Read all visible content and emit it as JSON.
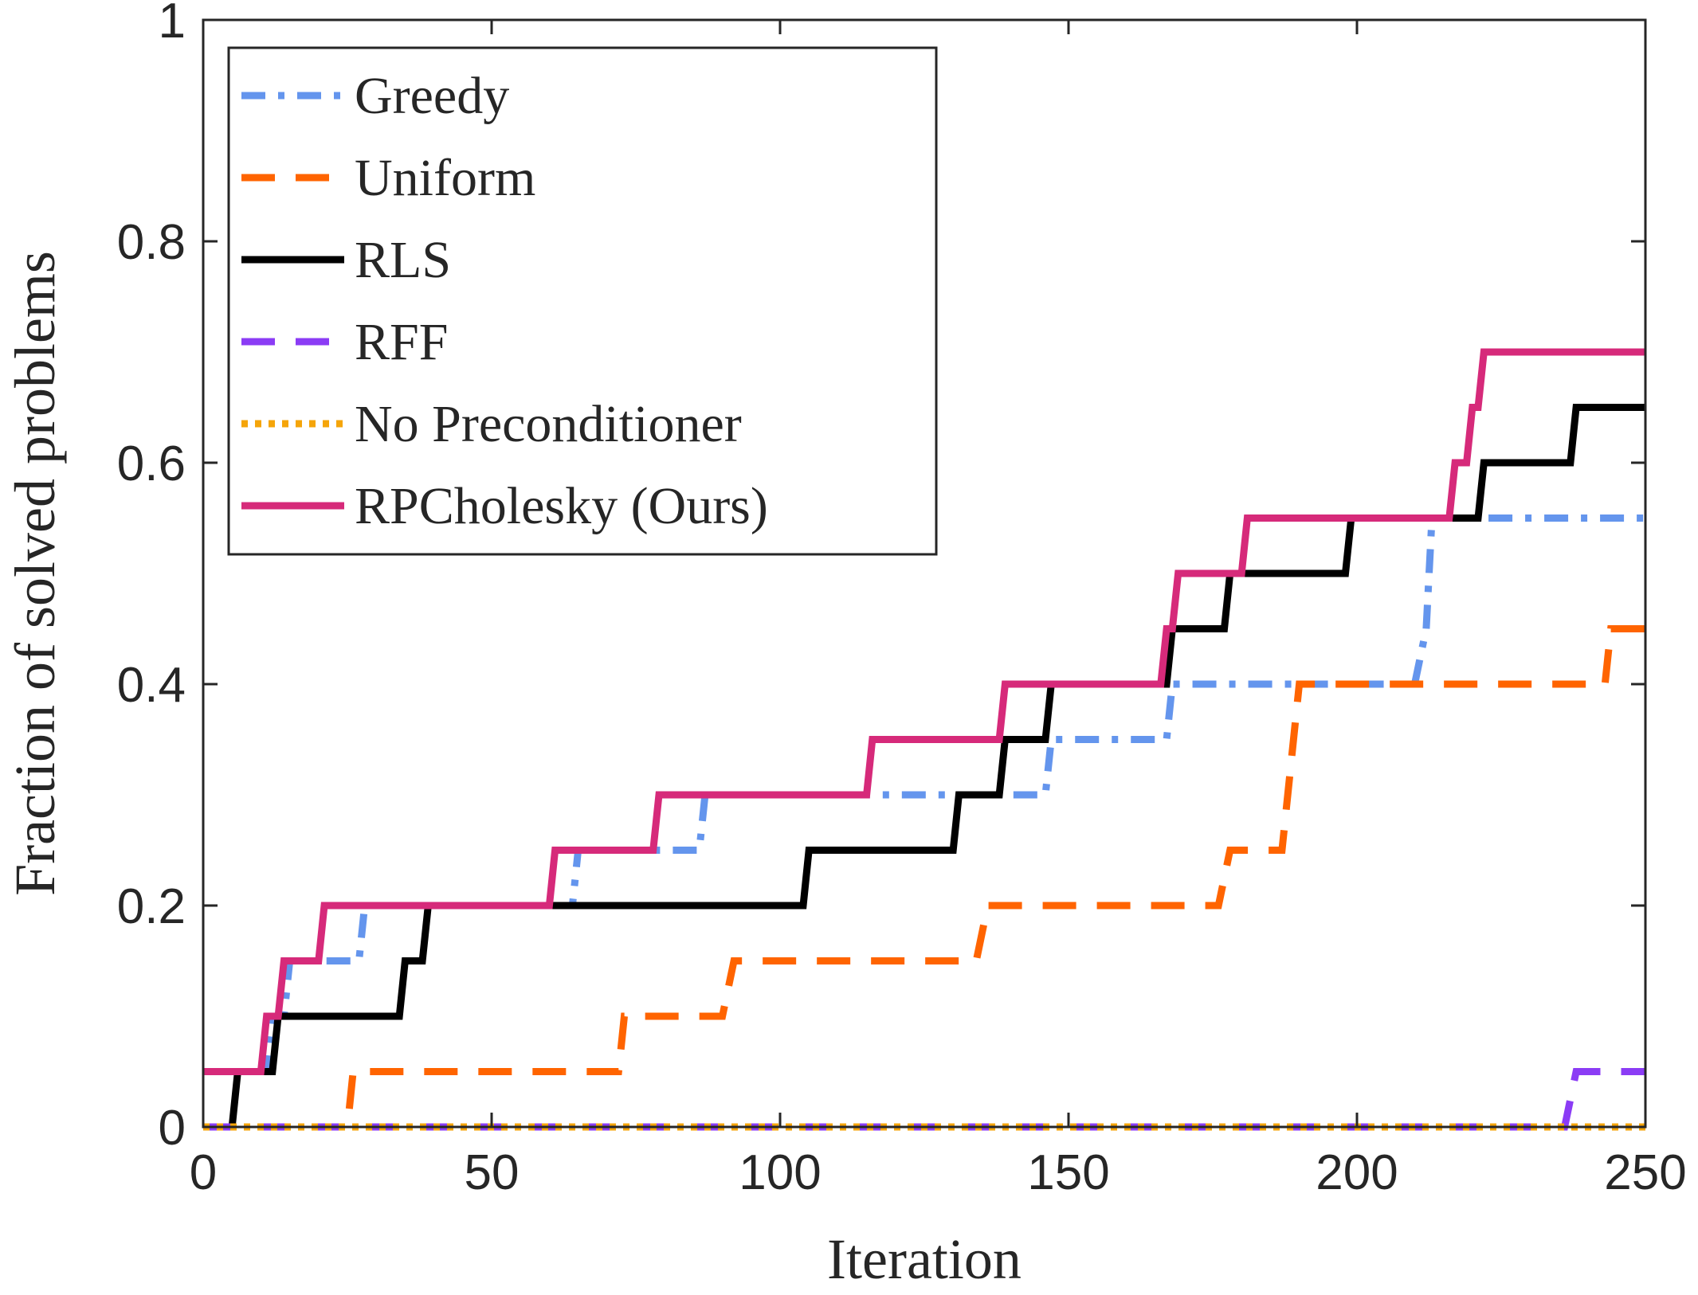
{
  "chart_data": {
    "type": "line",
    "title": "",
    "xlabel": "Iteration",
    "ylabel": "Fraction of solved problems",
    "xlim": [
      0,
      250
    ],
    "ylim": [
      0,
      1
    ],
    "xticks": [
      0,
      50,
      100,
      150,
      200,
      250
    ],
    "xtick_labels": [
      "0",
      "50",
      "100",
      "150",
      "200",
      "250"
    ],
    "yticks": [
      0,
      0.2,
      0.4,
      0.6,
      0.8,
      1
    ],
    "ytick_labels": [
      "0",
      "0.2",
      "0.4",
      "0.6",
      "0.8",
      "1"
    ],
    "grid": false,
    "legend_position": "top-left",
    "series": [
      {
        "name": "Greedy",
        "color": "#6495ED",
        "style": "dashdot",
        "points": [
          [
            0,
            0.05
          ],
          [
            11,
            0.05
          ],
          [
            12,
            0.1
          ],
          [
            14,
            0.1
          ],
          [
            15,
            0.15
          ],
          [
            27,
            0.15
          ],
          [
            28,
            0.2
          ],
          [
            64,
            0.2
          ],
          [
            65,
            0.25
          ],
          [
            86,
            0.25
          ],
          [
            87,
            0.3
          ],
          [
            146,
            0.3
          ],
          [
            147,
            0.35
          ],
          [
            167,
            0.35
          ],
          [
            168,
            0.4
          ],
          [
            210,
            0.4
          ],
          [
            212,
            0.45
          ],
          [
            213,
            0.55
          ],
          [
            250,
            0.55
          ]
        ]
      },
      {
        "name": "Uniform",
        "color": "#FF6400",
        "style": "dashed",
        "points": [
          [
            0,
            0
          ],
          [
            25,
            0
          ],
          [
            26,
            0.05
          ],
          [
            72,
            0.05
          ],
          [
            73,
            0.1
          ],
          [
            90,
            0.1
          ],
          [
            92,
            0.15
          ],
          [
            134,
            0.15
          ],
          [
            136,
            0.2
          ],
          [
            176,
            0.2
          ],
          [
            178,
            0.25
          ],
          [
            187,
            0.25
          ],
          [
            190,
            0.4
          ],
          [
            243,
            0.4
          ],
          [
            244,
            0.45
          ],
          [
            250,
            0.45
          ]
        ]
      },
      {
        "name": "RLS",
        "color": "#000000",
        "style": "solid",
        "points": [
          [
            0,
            0
          ],
          [
            5,
            0
          ],
          [
            6,
            0.05
          ],
          [
            12,
            0.05
          ],
          [
            13,
            0.1
          ],
          [
            34,
            0.1
          ],
          [
            35,
            0.15
          ],
          [
            38,
            0.15
          ],
          [
            39,
            0.2
          ],
          [
            104,
            0.2
          ],
          [
            105,
            0.25
          ],
          [
            130,
            0.25
          ],
          [
            131,
            0.3
          ],
          [
            138,
            0.3
          ],
          [
            139,
            0.35
          ],
          [
            146,
            0.35
          ],
          [
            147,
            0.4
          ],
          [
            167,
            0.4
          ],
          [
            168,
            0.45
          ],
          [
            177,
            0.45
          ],
          [
            178,
            0.5
          ],
          [
            198,
            0.5
          ],
          [
            199,
            0.55
          ],
          [
            221,
            0.55
          ],
          [
            222,
            0.6
          ],
          [
            237,
            0.6
          ],
          [
            238,
            0.65
          ],
          [
            250,
            0.65
          ]
        ]
      },
      {
        "name": "RFF",
        "color": "#8B3CF5",
        "style": "dashed",
        "points": [
          [
            0,
            0
          ],
          [
            236,
            0
          ],
          [
            238,
            0.05
          ],
          [
            250,
            0.05
          ]
        ]
      },
      {
        "name": "No Preconditioner",
        "color": "#F5A50A",
        "style": "dotted",
        "points": [
          [
            0,
            0
          ],
          [
            250,
            0
          ]
        ]
      },
      {
        "name": "RPCholesky (Ours)",
        "color": "#D62A7A",
        "style": "solid",
        "points": [
          [
            0,
            0.05
          ],
          [
            10,
            0.05
          ],
          [
            11,
            0.1
          ],
          [
            13,
            0.1
          ],
          [
            14,
            0.15
          ],
          [
            20,
            0.15
          ],
          [
            21,
            0.2
          ],
          [
            60,
            0.2
          ],
          [
            61,
            0.25
          ],
          [
            78,
            0.25
          ],
          [
            79,
            0.3
          ],
          [
            115,
            0.3
          ],
          [
            116,
            0.35
          ],
          [
            138,
            0.35
          ],
          [
            139,
            0.4
          ],
          [
            166,
            0.4
          ],
          [
            167,
            0.45
          ],
          [
            168,
            0.45
          ],
          [
            169,
            0.5
          ],
          [
            180,
            0.5
          ],
          [
            181,
            0.55
          ],
          [
            216,
            0.55
          ],
          [
            217,
            0.6
          ],
          [
            219,
            0.6
          ],
          [
            220,
            0.65
          ],
          [
            221,
            0.65
          ],
          [
            222,
            0.7
          ],
          [
            250,
            0.7
          ]
        ]
      }
    ]
  }
}
